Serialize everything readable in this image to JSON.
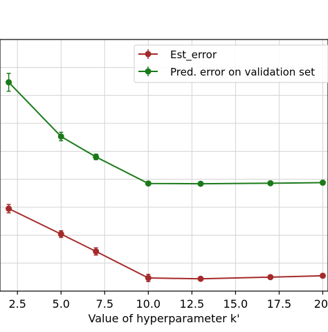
{
  "chart_data": {
    "type": "line",
    "title": "",
    "xlabel": "Value of hyperparameter k'",
    "ylabel": "",
    "xlim": [
      1.5,
      20.3
    ],
    "ylim": [
      0.0,
      9.0
    ],
    "grid": true,
    "legend_position": "top-right",
    "x_ticks": [
      "2.5",
      "5.0",
      "7.5",
      "10.0",
      "12.5",
      "15.0",
      "17.5",
      "20."
    ],
    "x_tick_values": [
      2.5,
      5.0,
      7.5,
      10.0,
      12.5,
      15.0,
      17.5,
      20.0
    ],
    "y_gridlines": [
      0,
      1,
      2,
      3,
      4,
      5,
      6,
      7,
      8,
      9
    ],
    "series": [
      {
        "name": "Est_error",
        "color": "#a52a2a",
        "x": [
          2,
          5,
          7,
          10,
          13,
          17,
          20
        ],
        "y": [
          2.95,
          2.04,
          1.42,
          0.47,
          0.44,
          0.5,
          0.55
        ],
        "err": [
          0.15,
          0.12,
          0.13,
          0.13,
          0.06,
          0.06,
          0.06
        ]
      },
      {
        "name": "Pred. error on validation set",
        "color": "#1a7a1a",
        "x": [
          2,
          5,
          7,
          10,
          13,
          17,
          20
        ],
        "y": [
          7.47,
          5.53,
          4.8,
          3.85,
          3.84,
          3.86,
          3.88
        ],
        "err": [
          0.32,
          0.15,
          0.1,
          0.06,
          0.05,
          0.05,
          0.05
        ]
      }
    ]
  }
}
